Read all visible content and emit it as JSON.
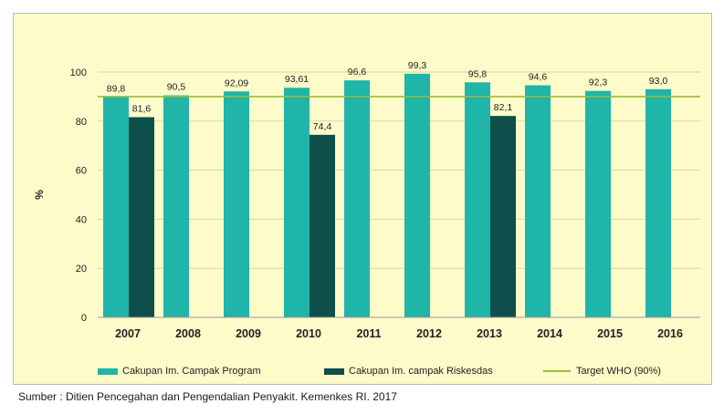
{
  "chart_data": {
    "type": "bar",
    "categories": [
      "2007",
      "2008",
      "2009",
      "2010",
      "2011",
      "2012",
      "2013",
      "2014",
      "2015",
      "2016"
    ],
    "series": [
      {
        "name": "Cakupan Im. Campak Program",
        "color": "#1fb5a8",
        "values": [
          89.8,
          90.5,
          92.09,
          93.61,
          96.6,
          99.3,
          95.8,
          94.6,
          92.3,
          93.0
        ],
        "labels": [
          "89,8",
          "90,5",
          "92,09",
          "93,61",
          "96,6",
          "99,3",
          "95,8",
          "94,6",
          "92,3",
          "93,0"
        ]
      },
      {
        "name": "Cakupan Im. campak Riskesdas",
        "color": "#0f4f4b",
        "values": [
          81.6,
          null,
          null,
          74.4,
          null,
          null,
          82.1,
          null,
          null,
          null
        ],
        "labels": [
          "81,6",
          null,
          null,
          "74,4",
          null,
          null,
          "82,1",
          null,
          null,
          null
        ]
      }
    ],
    "target_line": {
      "name": "Target WHO (90%)",
      "value": 90,
      "color": "#9bbb3c"
    },
    "ylabel": "%",
    "ylim": [
      0,
      100
    ],
    "yticks": [
      0,
      20,
      40,
      60,
      80,
      100
    ],
    "grid": true,
    "legend_position": "bottom"
  },
  "source_text": "Sumber : Ditien Pencegahan dan Pengendalian Penyakit. Kemenkes RI. 2017"
}
